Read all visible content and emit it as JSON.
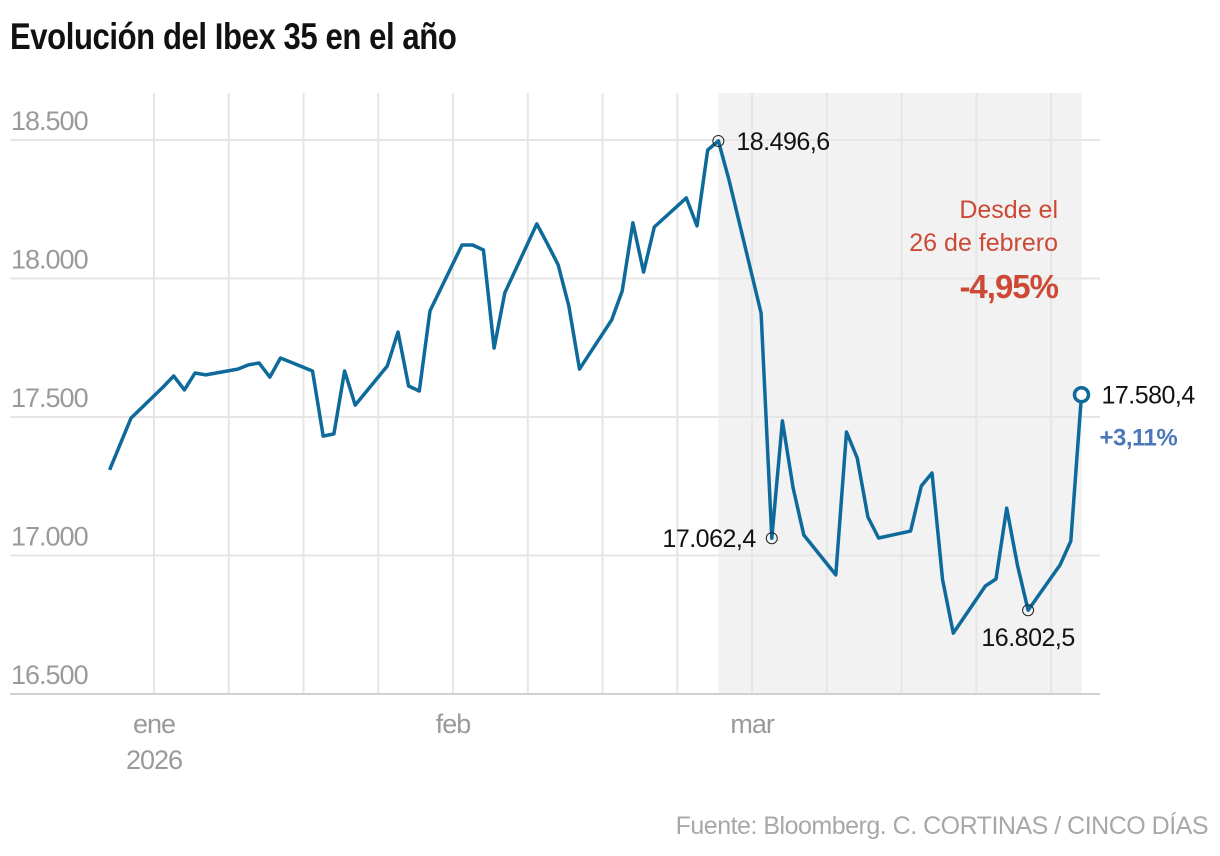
{
  "chart_data": {
    "type": "line",
    "title": "Evolución del Ibex 35 en el año",
    "source": "Fuente: Bloomberg. C. CORTINAS / CINCO DÍAS",
    "xlabel": "",
    "ylabel": "",
    "ylim": [
      16500,
      18500
    ],
    "y_ticks": [
      18500,
      18000,
      17500,
      17000,
      16500
    ],
    "y_tick_labels": [
      "18.500",
      "18.000",
      "17.500",
      "17.000",
      "16.500"
    ],
    "x_tick_labels": [
      {
        "date": "2026-01-05",
        "label": "ene",
        "sublabel": "2026"
      },
      {
        "date": "2026-02-02",
        "label": "feb",
        "sublabel": ""
      },
      {
        "date": "2026-03-02",
        "label": "mar",
        "sublabel": ""
      }
    ],
    "grid": true,
    "line_color": "#0e6a9a",
    "highlight_region": {
      "from": "2026-02-26",
      "to": "2026-04-01",
      "color": "#f2f2f2"
    },
    "series": [
      {
        "x": [
          "2025-12-31",
          "2026-01-02",
          "2026-01-05",
          "2026-01-06",
          "2026-01-07",
          "2026-01-08",
          "2026-01-09",
          "2026-01-12",
          "2026-01-13",
          "2026-01-14",
          "2026-01-15",
          "2026-01-16",
          "2026-01-19",
          "2026-01-20",
          "2026-01-21",
          "2026-01-22",
          "2026-01-23",
          "2026-01-26",
          "2026-01-27",
          "2026-01-28",
          "2026-01-29",
          "2026-01-30",
          "2026-02-02",
          "2026-02-03",
          "2026-02-04",
          "2026-02-05",
          "2026-02-06",
          "2026-02-09",
          "2026-02-10",
          "2026-02-11",
          "2026-02-12",
          "2026-02-13",
          "2026-02-16",
          "2026-02-17",
          "2026-02-18",
          "2026-02-19",
          "2026-02-20",
          "2026-02-23",
          "2026-02-24",
          "2026-02-25",
          "2026-02-26",
          "2026-02-27",
          "2026-03-02",
          "2026-03-03",
          "2026-03-04",
          "2026-03-05",
          "2026-03-06",
          "2026-03-09",
          "2026-03-10",
          "2026-03-11",
          "2026-03-12",
          "2026-03-13",
          "2026-03-16",
          "2026-03-17",
          "2026-03-18",
          "2026-03-19",
          "2026-03-20",
          "2026-03-23",
          "2026-03-24",
          "2026-03-25",
          "2026-03-26",
          "2026-03-27",
          "2026-03-30",
          "2026-03-31",
          "2026-04-01"
        ],
        "values": [
          17309,
          17496,
          17608,
          17648,
          17598,
          17659,
          17652,
          17673,
          17688,
          17695,
          17644,
          17713,
          17666,
          17431,
          17439,
          17666,
          17543,
          17684,
          17807,
          17612,
          17594,
          17883,
          18121,
          18121,
          18103,
          17749,
          17948,
          18197,
          18125,
          18049,
          17901,
          17673,
          17850,
          17955,
          18201,
          18023,
          18186,
          18291,
          18190,
          18464,
          18496.6,
          18356,
          17875,
          17062.4,
          17486,
          17244,
          17074,
          16930,
          17446,
          17352,
          17139,
          17063,
          17088,
          17251,
          17298,
          16912,
          16720,
          16890,
          16915,
          17171,
          16966,
          16802.5,
          16966,
          17052,
          17580.4
        ]
      }
    ],
    "annotations": [
      {
        "date": "2026-02-26",
        "value": 18496.6,
        "label": "18.496,6"
      },
      {
        "date": "2026-03-03",
        "value": 17062.4,
        "label": "17.062,4"
      },
      {
        "date": "2026-03-27",
        "value": 16802.5,
        "label": "16.802,5"
      },
      {
        "date": "2026-04-01",
        "value": 17580.4,
        "label": "17.580,4",
        "change": "+3,11%"
      }
    ],
    "highlight_note": {
      "line1": "Desde el",
      "line2": "26 de febrero",
      "change": "-4,95%"
    }
  }
}
